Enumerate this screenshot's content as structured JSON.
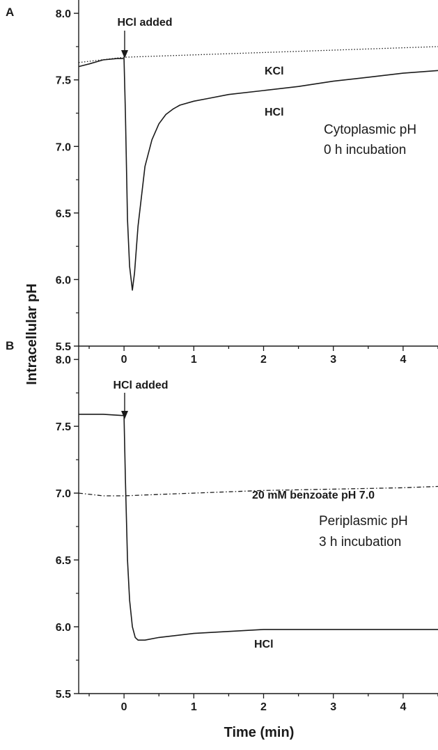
{
  "figure": {
    "ylabel": "Intracellular pH",
    "xlabel": "Time (min)"
  },
  "chart_data": [
    {
      "panel": "A",
      "type": "line",
      "xlim": [
        -0.65,
        4.5
      ],
      "ylim": [
        5.5,
        8.1
      ],
      "yticks": [
        "5.5",
        "6.0",
        "6.5",
        "7.0",
        "7.5",
        "8.0"
      ],
      "xticks": [
        "0",
        "1",
        "2",
        "3",
        "4"
      ],
      "annotations": [
        "HCl added",
        "Cytoplasmic pH",
        "0 h incubation"
      ],
      "series": [
        {
          "name": "KCl",
          "style": "dotted",
          "x": [
            -0.65,
            0.0,
            4.5
          ],
          "y": [
            7.63,
            7.67,
            7.75
          ]
        },
        {
          "name": "HCl",
          "style": "solid",
          "x": [
            -0.65,
            -0.5,
            -0.3,
            -0.1,
            0.0,
            0.02,
            0.05,
            0.08,
            0.12,
            0.15,
            0.2,
            0.3,
            0.4,
            0.5,
            0.6,
            0.7,
            0.8,
            1.0,
            1.2,
            1.5,
            2.0,
            2.5,
            3.0,
            3.5,
            4.0,
            4.5
          ],
          "y": [
            7.6,
            7.62,
            7.65,
            7.66,
            7.66,
            7.25,
            6.45,
            6.1,
            5.92,
            6.05,
            6.4,
            6.85,
            7.05,
            7.17,
            7.24,
            7.28,
            7.31,
            7.34,
            7.36,
            7.39,
            7.42,
            7.45,
            7.49,
            7.52,
            7.55,
            7.57
          ]
        }
      ]
    },
    {
      "panel": "B",
      "type": "line",
      "xlim": [
        -0.65,
        4.5
      ],
      "ylim": [
        5.5,
        8.1
      ],
      "yticks": [
        "5.5",
        "6.0",
        "6.5",
        "7.0",
        "7.5",
        "8.0"
      ],
      "xticks": [
        "0",
        "1",
        "2",
        "3",
        "4"
      ],
      "annotations": [
        "HCl added",
        "Periplasmic pH",
        "3 h incubation"
      ],
      "series": [
        {
          "name": "20 mM benzoate pH 7.0",
          "style": "dash-dot",
          "x": [
            -0.65,
            -0.3,
            0.0,
            0.5,
            1.0,
            2.0,
            3.0,
            4.0,
            4.5
          ],
          "y": [
            7.0,
            6.98,
            6.98,
            6.99,
            7.0,
            7.02,
            7.03,
            7.04,
            7.05
          ]
        },
        {
          "name": "HCl",
          "style": "solid",
          "x": [
            -0.65,
            -0.3,
            0.0,
            0.02,
            0.05,
            0.08,
            0.12,
            0.16,
            0.2,
            0.3,
            0.5,
            1.0,
            2.0,
            3.0,
            4.0,
            4.5
          ],
          "y": [
            7.59,
            7.59,
            7.58,
            7.1,
            6.5,
            6.2,
            6.0,
            5.92,
            5.9,
            5.9,
            5.92,
            5.95,
            5.98,
            5.98,
            5.98,
            5.98
          ]
        }
      ]
    }
  ]
}
